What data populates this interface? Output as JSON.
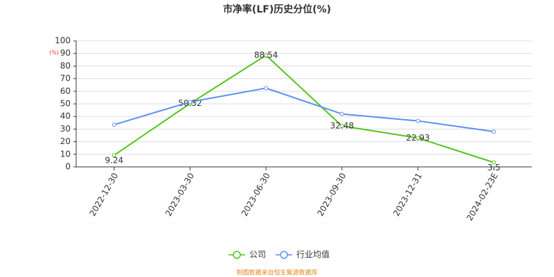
{
  "chart_data": {
    "type": "line",
    "title": "市净率(LF)历史分位(%)",
    "y_unit": "(%)",
    "categories": [
      "2022-12-30",
      "2023-03-30",
      "2023-06-30",
      "2023-09-30",
      "2023-12-31",
      "2024-02-23E"
    ],
    "series": [
      {
        "name": "公司",
        "color": "#52c41a",
        "values": [
          9.24,
          50.32,
          88.54,
          32.48,
          22.93,
          3.5
        ],
        "show_labels": true
      },
      {
        "name": "行业均值",
        "color": "#5b8ff0",
        "values": [
          33.5,
          51.5,
          62.5,
          42,
          36.5,
          28
        ],
        "show_labels": false
      }
    ],
    "ylim": [
      0,
      100
    ],
    "yticks": [
      0,
      10,
      20,
      30,
      40,
      50,
      60,
      70,
      80,
      90,
      100
    ],
    "grid": true,
    "source": "制图数据来自恒生聚源数据库"
  }
}
